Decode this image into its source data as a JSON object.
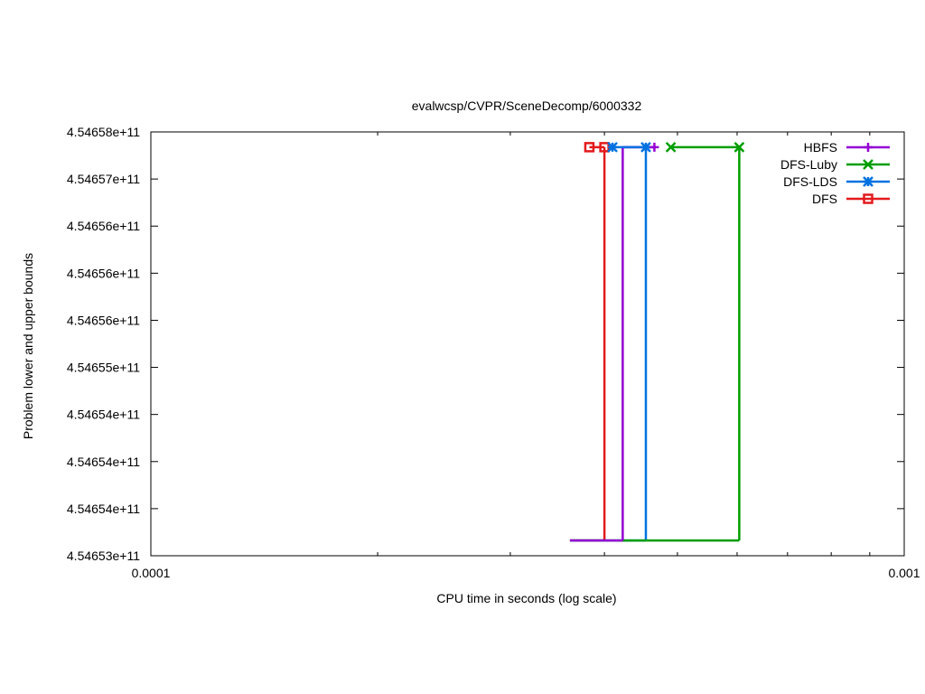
{
  "chart_data": {
    "type": "line",
    "title": "evalwcsp/CVPR/SceneDecomp/6000332",
    "xlabel": "CPU time in seconds (log scale)",
    "ylabel": "Problem lower and upper bounds",
    "x_scale": "log",
    "xlim": [
      0.0001,
      0.001
    ],
    "x_ticks": [
      {
        "value": 0.0001,
        "label": "0.0001"
      },
      {
        "value": 0.001,
        "label": "0.001"
      }
    ],
    "ylim": [
      454653000000,
      454658000000
    ],
    "y_ticks": [
      {
        "value": 454653000000,
        "label": "4.54653e+11"
      },
      {
        "value": 454653555556,
        "label": "4.54654e+11"
      },
      {
        "value": 454654111111,
        "label": "4.54654e+11"
      },
      {
        "value": 454654666667,
        "label": "4.54654e+11"
      },
      {
        "value": 454655222222,
        "label": "4.54655e+11"
      },
      {
        "value": 454655777778,
        "label": "4.54656e+11"
      },
      {
        "value": 454656333333,
        "label": "4.54656e+11"
      },
      {
        "value": 454656888889,
        "label": "4.54656e+11"
      },
      {
        "value": 454657444444,
        "label": "4.54657e+11"
      },
      {
        "value": 454658000000,
        "label": "4.54658e+11"
      }
    ],
    "grid": false,
    "legend_position": "top-right",
    "upper_bound": 454657820000,
    "lower_bound": 454653180000,
    "series": [
      {
        "name": "HBFS",
        "color": "#9400d3",
        "marker": "plus",
        "lower": [
          [
            0.00036,
            454653180000
          ],
          [
            0.000423,
            454653180000
          ]
        ],
        "upper": [
          [
            0.000423,
            454657820000
          ],
          [
            0.000466,
            454657820000
          ]
        ],
        "points": [
          [
            0.000466,
            454657820000
          ]
        ]
      },
      {
        "name": "DFS-Luby",
        "color": "#009e00",
        "marker": "x",
        "lower": [
          [
            0.00036,
            454653180000
          ],
          [
            0.000604,
            454653180000
          ]
        ],
        "upper": [
          [
            0.000604,
            454657820000
          ],
          [
            0.000604,
            454657820000
          ]
        ],
        "points": [
          [
            0.00049,
            454657820000
          ],
          [
            0.000604,
            454657820000
          ]
        ]
      },
      {
        "name": "DFS-LDS",
        "color": "#0072e0",
        "marker": "star",
        "lower": [
          [
            0.00036,
            454653180000
          ],
          [
            0.000454,
            454653180000
          ]
        ],
        "upper": [
          [
            0.000454,
            454657820000
          ],
          [
            0.000454,
            454657820000
          ]
        ],
        "points": [
          [
            0.00041,
            454657820000
          ],
          [
            0.000454,
            454657820000
          ]
        ]
      },
      {
        "name": "DFS",
        "color": "#e31a1c",
        "marker": "square",
        "lower": [
          [
            0.00036,
            454653180000
          ],
          [
            0.0004,
            454653180000
          ]
        ],
        "upper": [
          [
            0.0004,
            454657820000
          ],
          [
            0.0004,
            454657820000
          ]
        ],
        "points": [
          [
            0.000382,
            454657820000
          ],
          [
            0.0004,
            454657820000
          ]
        ]
      }
    ]
  }
}
